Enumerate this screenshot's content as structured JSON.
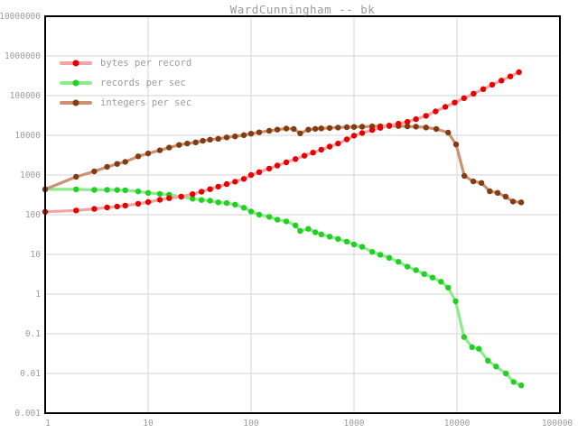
{
  "chart_data": {
    "type": "line",
    "title": "WardCunningham -- bk",
    "xlabel": "",
    "ylabel": "",
    "x_scale": "log",
    "y_scale": "log",
    "xlim": [
      1,
      100000
    ],
    "ylim": [
      0.001,
      10000000
    ],
    "grid": true,
    "legend_position": "top-left",
    "x_ticks": [
      "1",
      "10",
      "100",
      "1000",
      "10000",
      "100000"
    ],
    "y_ticks": [
      "10000000",
      "1000000",
      "100000",
      "10000",
      "1000",
      "100",
      "10",
      "1",
      "0.1",
      "0.01",
      "0.001"
    ],
    "colors": {
      "background": "#ffffff",
      "frame": "#000000",
      "grid": "#dcdcdc",
      "text": "#9b9b9b"
    },
    "series": [
      {
        "name": "bytes per record",
        "point_color": "#e60000",
        "line_color": "#f5a3a3",
        "points": [
          [
            1,
            118
          ],
          [
            2,
            128
          ],
          [
            3,
            140
          ],
          [
            4,
            152
          ],
          [
            5,
            161
          ],
          [
            6,
            170
          ],
          [
            8,
            188
          ],
          [
            10,
            208
          ],
          [
            13,
            237
          ],
          [
            16,
            260
          ],
          [
            21,
            285
          ],
          [
            27,
            330
          ],
          [
            33,
            380
          ],
          [
            40,
            440
          ],
          [
            48,
            510
          ],
          [
            58,
            590
          ],
          [
            70,
            680
          ],
          [
            85,
            800
          ],
          [
            100,
            1000
          ],
          [
            120,
            1180
          ],
          [
            150,
            1450
          ],
          [
            180,
            1730
          ],
          [
            220,
            2080
          ],
          [
            270,
            2530
          ],
          [
            330,
            3060
          ],
          [
            400,
            3670
          ],
          [
            480,
            4360
          ],
          [
            580,
            5210
          ],
          [
            700,
            6220
          ],
          [
            850,
            7900
          ],
          [
            1000,
            9800
          ],
          [
            1200,
            11400
          ],
          [
            1500,
            13600
          ],
          [
            1800,
            15400
          ],
          [
            2200,
            17600
          ],
          [
            2700,
            19600
          ],
          [
            3300,
            21800
          ],
          [
            4000,
            25500
          ],
          [
            5000,
            31000
          ],
          [
            6200,
            40000
          ],
          [
            7700,
            52000
          ],
          [
            9500,
            67000
          ],
          [
            11700,
            86500
          ],
          [
            14500,
            112000
          ],
          [
            18000,
            146000
          ],
          [
            22000,
            188000
          ],
          [
            27000,
            240000
          ],
          [
            33000,
            305000
          ],
          [
            40000,
            390000
          ]
        ]
      },
      {
        "name": "records per sec",
        "point_color": "#22cf22",
        "line_color": "#8ceb8c",
        "points": [
          [
            1,
            435
          ],
          [
            2,
            435
          ],
          [
            3,
            422
          ],
          [
            4,
            425
          ],
          [
            5,
            420
          ],
          [
            6,
            412
          ],
          [
            8,
            385
          ],
          [
            10,
            355
          ],
          [
            13,
            335
          ],
          [
            16,
            320
          ],
          [
            21,
            285
          ],
          [
            27,
            252
          ],
          [
            33,
            235
          ],
          [
            40,
            225
          ],
          [
            48,
            205
          ],
          [
            58,
            196
          ],
          [
            70,
            180
          ],
          [
            85,
            150
          ],
          [
            100,
            120
          ],
          [
            120,
            100
          ],
          [
            150,
            88
          ],
          [
            180,
            75
          ],
          [
            220,
            68
          ],
          [
            270,
            54
          ],
          [
            300,
            39
          ],
          [
            360,
            44
          ],
          [
            420,
            36
          ],
          [
            480,
            32
          ],
          [
            580,
            28
          ],
          [
            700,
            24.5
          ],
          [
            850,
            21
          ],
          [
            1000,
            17.8
          ],
          [
            1200,
            15.5
          ],
          [
            1500,
            11.6
          ],
          [
            1800,
            9.8
          ],
          [
            2200,
            8.2
          ],
          [
            2700,
            6.5
          ],
          [
            3300,
            4.9
          ],
          [
            4000,
            4.0
          ],
          [
            4800,
            3.2
          ],
          [
            5800,
            2.6
          ],
          [
            7000,
            2.05
          ],
          [
            8200,
            1.45
          ],
          [
            9700,
            0.66
          ],
          [
            11700,
            0.083
          ],
          [
            14000,
            0.046
          ],
          [
            16300,
            0.042
          ],
          [
            20000,
            0.021
          ],
          [
            24000,
            0.015
          ],
          [
            29800,
            0.01
          ],
          [
            35500,
            0.0061
          ],
          [
            42000,
            0.005
          ]
        ]
      },
      {
        "name": "integers per sec",
        "point_color": "#823b12",
        "line_color": "#cc9270",
        "points": [
          [
            1,
            435
          ],
          [
            2,
            900
          ],
          [
            3,
            1230
          ],
          [
            4,
            1600
          ],
          [
            5,
            1900
          ],
          [
            6,
            2150
          ],
          [
            8,
            2950
          ],
          [
            10,
            3500
          ],
          [
            13,
            4200
          ],
          [
            16,
            4900
          ],
          [
            20,
            5700
          ],
          [
            24,
            6200
          ],
          [
            29,
            6650
          ],
          [
            34,
            7250
          ],
          [
            40,
            7760
          ],
          [
            48,
            8200
          ],
          [
            58,
            8850
          ],
          [
            70,
            9400
          ],
          [
            85,
            10100
          ],
          [
            100,
            11000
          ],
          [
            120,
            11900
          ],
          [
            150,
            13000
          ],
          [
            180,
            13900
          ],
          [
            220,
            14800
          ],
          [
            260,
            14400
          ],
          [
            300,
            11200
          ],
          [
            360,
            13900
          ],
          [
            420,
            14600
          ],
          [
            480,
            15000
          ],
          [
            580,
            15300
          ],
          [
            700,
            15700
          ],
          [
            850,
            16000
          ],
          [
            1000,
            16300
          ],
          [
            1200,
            16400
          ],
          [
            1500,
            16800
          ],
          [
            1800,
            17000
          ],
          [
            2200,
            17100
          ],
          [
            2700,
            17100
          ],
          [
            3300,
            16800
          ],
          [
            4000,
            16500
          ],
          [
            5000,
            15800
          ],
          [
            6300,
            14400
          ],
          [
            8200,
            11700
          ],
          [
            9800,
            5900
          ],
          [
            11800,
            950
          ],
          [
            14400,
            690
          ],
          [
            17300,
            630
          ],
          [
            20800,
            390
          ],
          [
            24800,
            355
          ],
          [
            29700,
            285
          ],
          [
            35000,
            215
          ],
          [
            42000,
            205
          ]
        ]
      }
    ]
  }
}
